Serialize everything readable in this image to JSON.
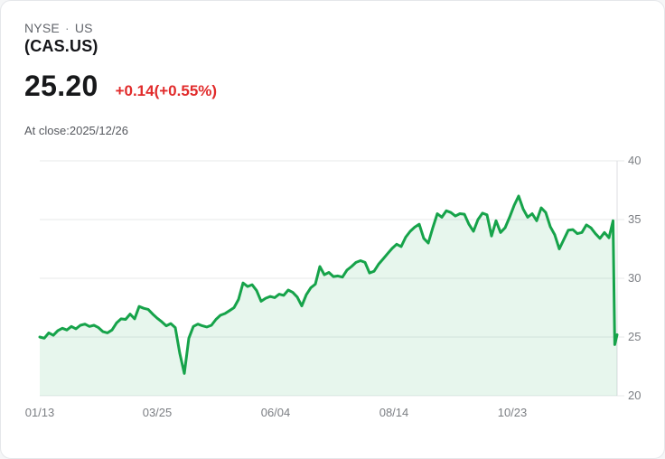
{
  "header": {
    "exchange": "NYSE",
    "bullet": "·",
    "country": "US",
    "symbol": "(CAS.US)",
    "price": "25.20",
    "change": "+0.14(+0.55%)",
    "as_of": "At close:2025/12/26"
  },
  "colors": {
    "line": "#16a34a",
    "fill": "rgba(22,163,74,0.10)",
    "grid": "#e7e8ea",
    "axis_line": "#dcdee1",
    "tick_text": "#7b7e83",
    "change_text": "#e12b2b"
  },
  "chart_data": {
    "type": "area",
    "title": "CAS.US 1-year price chart",
    "xlabel": "",
    "ylabel": "",
    "ylim": [
      20,
      40
    ],
    "grid": "horizontal-only",
    "legend": "none",
    "y_ticks": [
      20,
      25,
      30,
      35,
      40
    ],
    "x_ticks": [
      {
        "label": "01/13",
        "t": 0.0
      },
      {
        "label": "03/25",
        "t": 0.2034
      },
      {
        "label": "06/04",
        "t": 0.4084
      },
      {
        "label": "08/14",
        "t": 0.6134
      },
      {
        "label": "10/23",
        "t": 0.8185
      }
    ],
    "points": [
      [
        0.0,
        25.0
      ],
      [
        0.0078,
        24.9
      ],
      [
        0.0156,
        25.35
      ],
      [
        0.0235,
        25.15
      ],
      [
        0.0313,
        25.55
      ],
      [
        0.0391,
        25.75
      ],
      [
        0.0469,
        25.6
      ],
      [
        0.0548,
        25.9
      ],
      [
        0.0626,
        25.7
      ],
      [
        0.0704,
        26.0
      ],
      [
        0.0782,
        26.1
      ],
      [
        0.0861,
        25.9
      ],
      [
        0.0939,
        26.0
      ],
      [
        0.1017,
        25.8
      ],
      [
        0.1095,
        25.45
      ],
      [
        0.1174,
        25.35
      ],
      [
        0.1252,
        25.6
      ],
      [
        0.133,
        26.2
      ],
      [
        0.1408,
        26.55
      ],
      [
        0.1487,
        26.5
      ],
      [
        0.1565,
        26.95
      ],
      [
        0.1643,
        26.55
      ],
      [
        0.1721,
        27.6
      ],
      [
        0.18,
        27.45
      ],
      [
        0.1878,
        27.35
      ],
      [
        0.1956,
        26.95
      ],
      [
        0.2034,
        26.6
      ],
      [
        0.2113,
        26.3
      ],
      [
        0.2191,
        25.95
      ],
      [
        0.2269,
        26.15
      ],
      [
        0.2347,
        25.8
      ],
      [
        0.2426,
        23.6
      ],
      [
        0.2504,
        21.9
      ],
      [
        0.2582,
        24.9
      ],
      [
        0.266,
        25.9
      ],
      [
        0.2739,
        26.1
      ],
      [
        0.2817,
        25.95
      ],
      [
        0.2895,
        25.85
      ],
      [
        0.2973,
        26.0
      ],
      [
        0.3052,
        26.5
      ],
      [
        0.313,
        26.85
      ],
      [
        0.3208,
        27.0
      ],
      [
        0.3286,
        27.25
      ],
      [
        0.3365,
        27.5
      ],
      [
        0.3443,
        28.2
      ],
      [
        0.3521,
        29.6
      ],
      [
        0.3599,
        29.3
      ],
      [
        0.3678,
        29.45
      ],
      [
        0.3756,
        28.95
      ],
      [
        0.3834,
        28.05
      ],
      [
        0.3912,
        28.3
      ],
      [
        0.3991,
        28.45
      ],
      [
        0.4069,
        28.35
      ],
      [
        0.4147,
        28.65
      ],
      [
        0.4225,
        28.55
      ],
      [
        0.4304,
        29.0
      ],
      [
        0.4382,
        28.8
      ],
      [
        0.446,
        28.4
      ],
      [
        0.4538,
        27.65
      ],
      [
        0.4617,
        28.6
      ],
      [
        0.4695,
        29.2
      ],
      [
        0.4773,
        29.5
      ],
      [
        0.4851,
        31.0
      ],
      [
        0.493,
        30.3
      ],
      [
        0.5008,
        30.5
      ],
      [
        0.5086,
        30.15
      ],
      [
        0.5164,
        30.2
      ],
      [
        0.5243,
        30.1
      ],
      [
        0.5321,
        30.7
      ],
      [
        0.5399,
        31.0
      ],
      [
        0.5477,
        31.35
      ],
      [
        0.5556,
        31.5
      ],
      [
        0.5634,
        31.35
      ],
      [
        0.5712,
        30.45
      ],
      [
        0.579,
        30.6
      ],
      [
        0.5869,
        31.2
      ],
      [
        0.5947,
        31.65
      ],
      [
        0.6025,
        32.1
      ],
      [
        0.6103,
        32.55
      ],
      [
        0.6182,
        32.9
      ],
      [
        0.626,
        32.7
      ],
      [
        0.6338,
        33.5
      ],
      [
        0.6416,
        34.0
      ],
      [
        0.6495,
        34.35
      ],
      [
        0.6573,
        34.6
      ],
      [
        0.6651,
        33.4
      ],
      [
        0.6729,
        33.0
      ],
      [
        0.6808,
        34.3
      ],
      [
        0.6886,
        35.5
      ],
      [
        0.6964,
        35.2
      ],
      [
        0.7042,
        35.75
      ],
      [
        0.7121,
        35.6
      ],
      [
        0.7199,
        35.3
      ],
      [
        0.7277,
        35.5
      ],
      [
        0.7355,
        35.45
      ],
      [
        0.7434,
        34.6
      ],
      [
        0.7512,
        34.0
      ],
      [
        0.759,
        35.0
      ],
      [
        0.7668,
        35.55
      ],
      [
        0.7747,
        35.4
      ],
      [
        0.7825,
        33.6
      ],
      [
        0.7903,
        34.9
      ],
      [
        0.7981,
        33.9
      ],
      [
        0.806,
        34.3
      ],
      [
        0.8138,
        35.2
      ],
      [
        0.8216,
        36.2
      ],
      [
        0.8294,
        37.0
      ],
      [
        0.8373,
        35.9
      ],
      [
        0.8451,
        35.2
      ],
      [
        0.8529,
        35.5
      ],
      [
        0.8607,
        34.9
      ],
      [
        0.8686,
        36.0
      ],
      [
        0.8764,
        35.6
      ],
      [
        0.8842,
        34.4
      ],
      [
        0.892,
        33.7
      ],
      [
        0.8999,
        32.5
      ],
      [
        0.9077,
        33.3
      ],
      [
        0.9155,
        34.1
      ],
      [
        0.9233,
        34.15
      ],
      [
        0.9312,
        33.8
      ],
      [
        0.939,
        33.9
      ],
      [
        0.9468,
        34.55
      ],
      [
        0.9546,
        34.3
      ],
      [
        0.9625,
        33.8
      ],
      [
        0.9703,
        33.4
      ],
      [
        0.9781,
        33.9
      ],
      [
        0.9859,
        33.45
      ],
      [
        0.993,
        34.9
      ],
      [
        0.996,
        24.35
      ],
      [
        1.0,
        25.2
      ]
    ]
  }
}
